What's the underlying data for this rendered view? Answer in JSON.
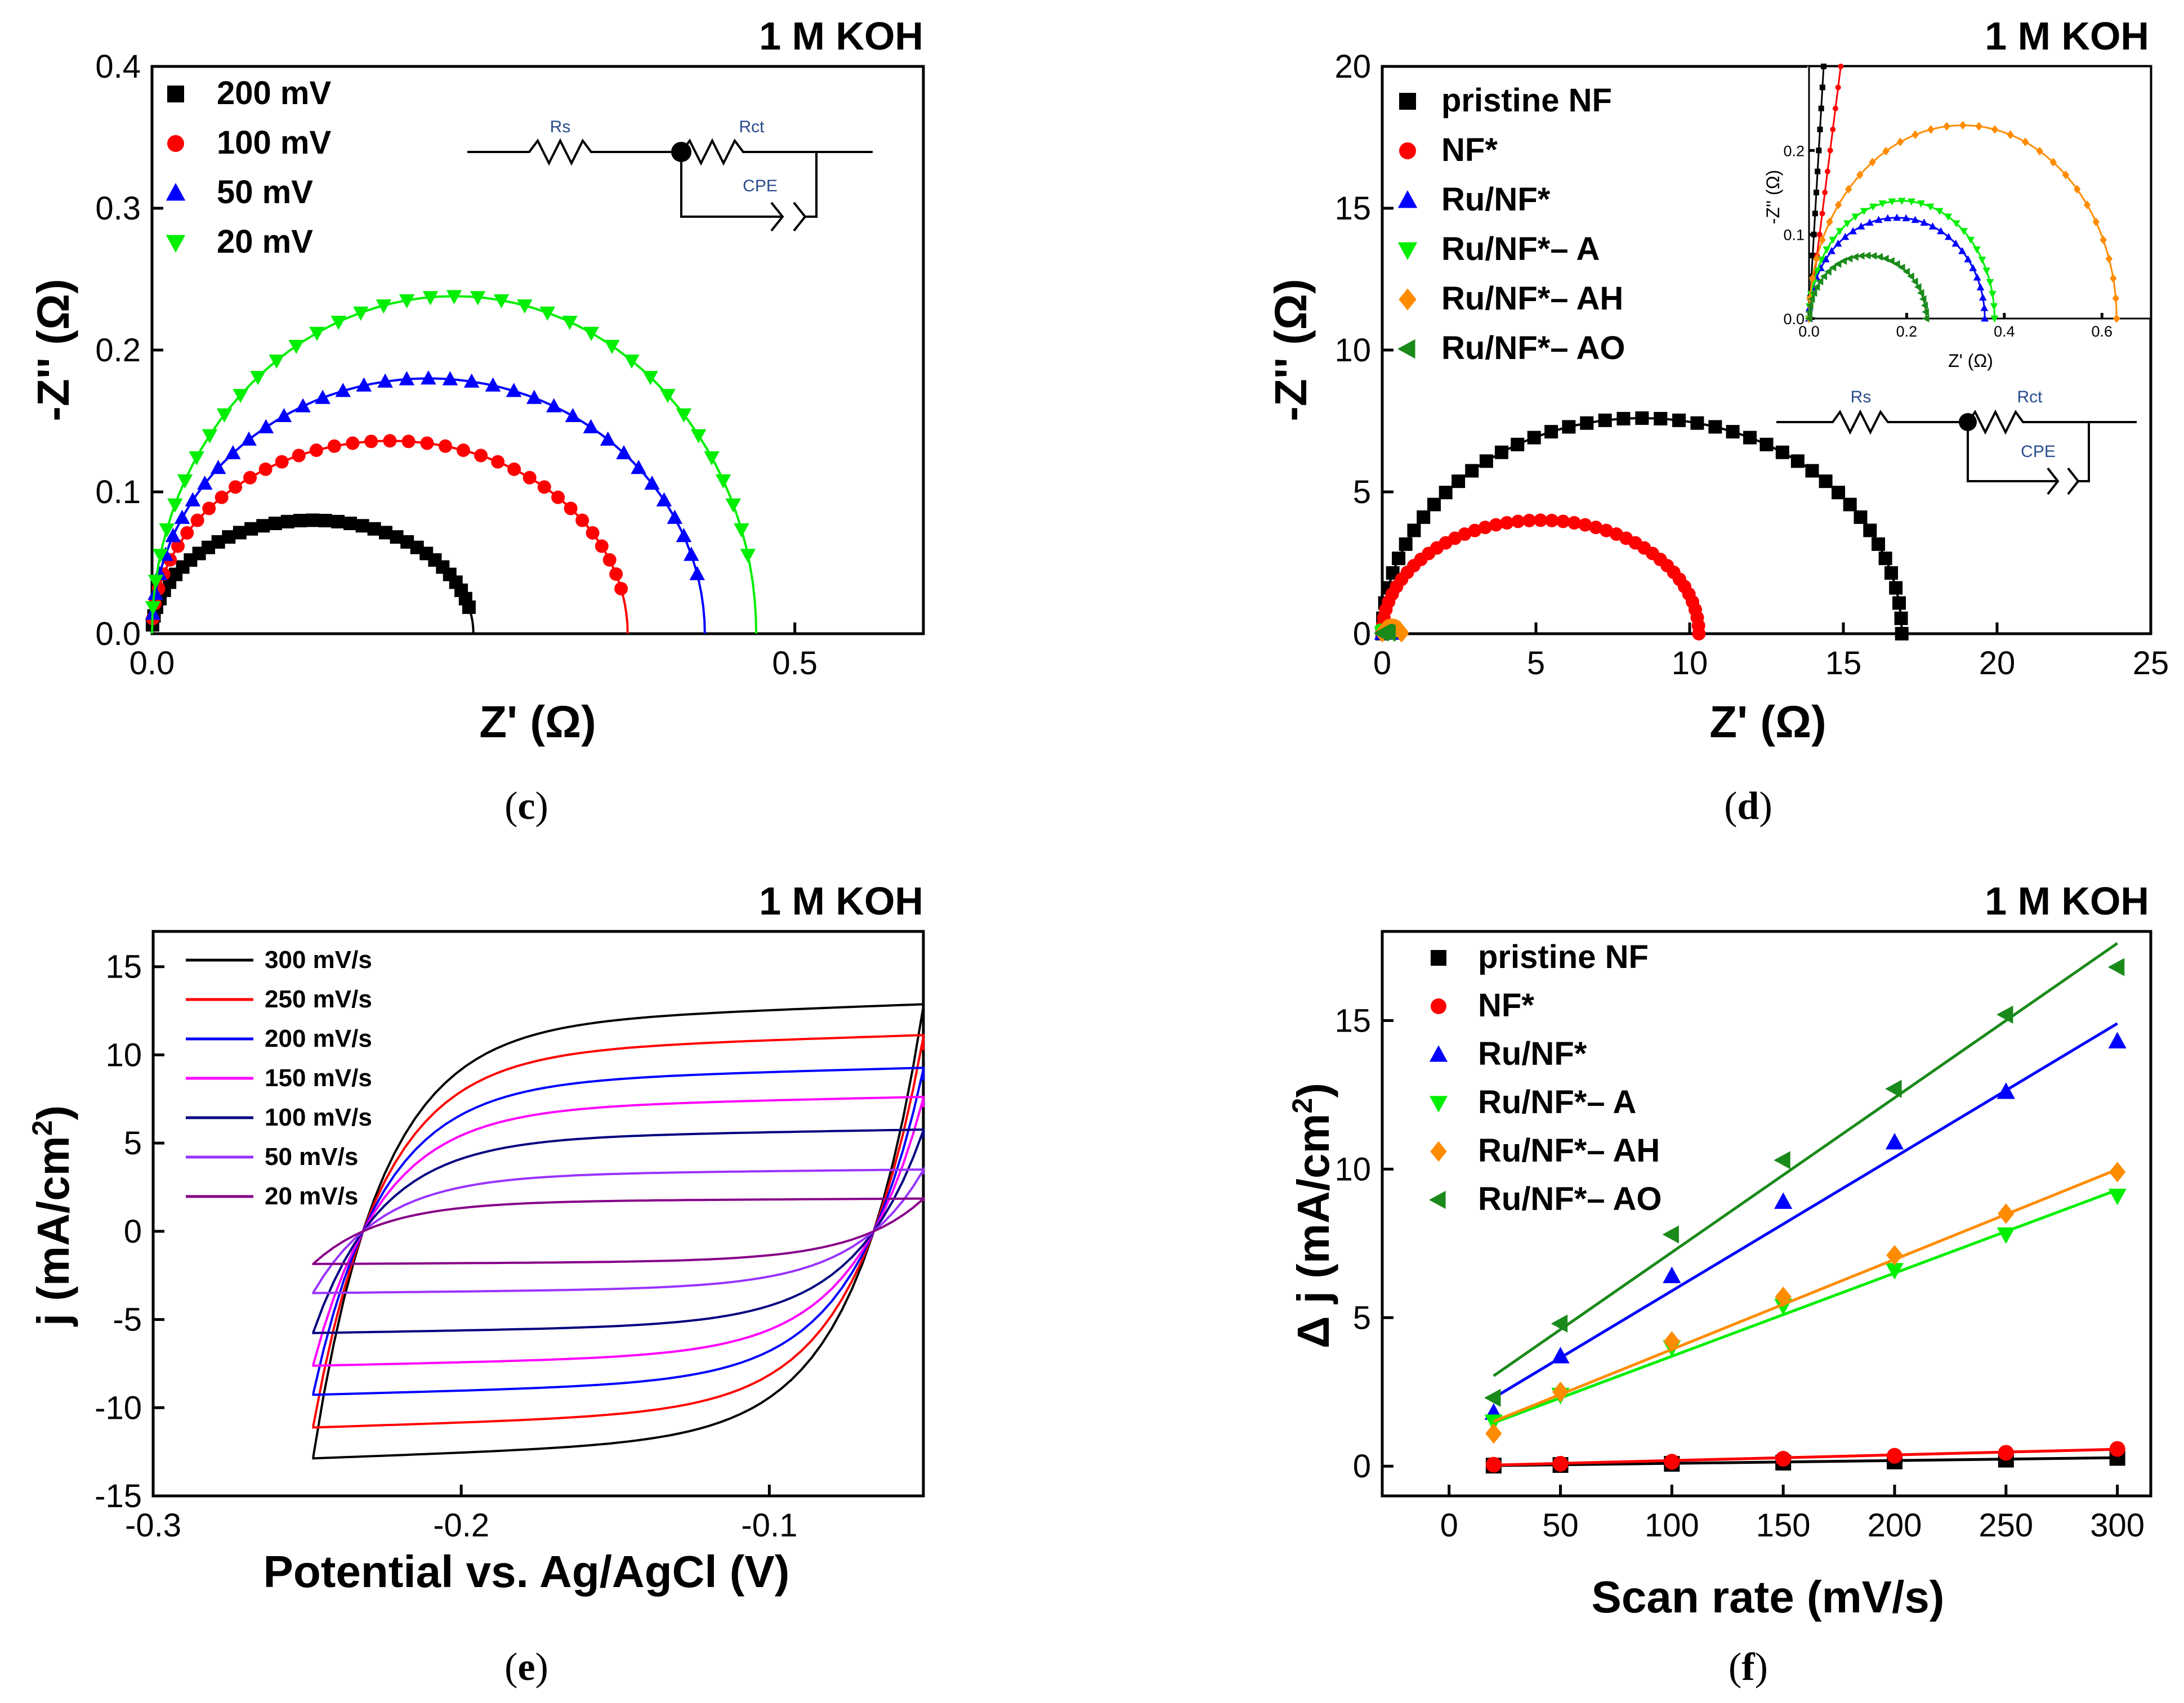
{
  "panels": {
    "c": {
      "title": "1 M KOH",
      "caption": {
        "open": "(",
        "letter": "c",
        "close": ")"
      },
      "xlabel": "Z' (Ω)",
      "ylabel": "-Z'' (Ω)",
      "xticks": [
        "0.0",
        "0.5"
      ],
      "yticks": [
        "0.0",
        "0.1",
        "0.2",
        "0.3",
        "0.4"
      ],
      "circuit": {
        "rs": "Rs",
        "rct": "Rct",
        "cpe": "CPE"
      }
    },
    "d": {
      "title": "1 M KOH",
      "caption": {
        "open": "(",
        "letter": "d",
        "close": ")"
      },
      "xlabel": "Z' (Ω)",
      "ylabel": "-Z'' (Ω)",
      "xticks": [
        "0",
        "5",
        "10",
        "15",
        "20",
        "25"
      ],
      "yticks": [
        "0",
        "5",
        "10",
        "15",
        "20"
      ],
      "inset": {
        "xlabel": "Z' (Ω)",
        "ylabel": "-Z'' (Ω)",
        "xticks": [
          "0.0",
          "0.2",
          "0.4",
          "0.6"
        ],
        "yticks": [
          "0.0",
          "0.1",
          "0.2"
        ]
      },
      "circuit": {
        "rs": "Rs",
        "rct": "Rct",
        "cpe": "CPE"
      }
    },
    "e": {
      "title": "1 M KOH",
      "caption": {
        "open": "(",
        "letter": "e",
        "close": ")"
      },
      "xlabel": "Potential vs. Ag/AgCl (V)",
      "ylabel": "j (mA/cm",
      "ylabel_sup": "2",
      "ylabel_end": ")",
      "xticks": [
        "-0.3",
        "-0.2",
        "-0.1"
      ],
      "yticks": [
        "-15",
        "-10",
        "-5",
        "0",
        "5",
        "10",
        "15"
      ]
    },
    "f": {
      "title": "1 M KOH",
      "caption": {
        "open": "(",
        "letter": "f",
        "close": ")"
      },
      "xlabel": "Scan rate (mV/s)",
      "ylabel": "Δ j (mA/cm",
      "ylabel_sup": "2",
      "ylabel_end": ")",
      "xticks": [
        "0",
        "50",
        "100",
        "150",
        "200",
        "250",
        "300"
      ],
      "yticks": [
        "0",
        "5",
        "10",
        "15"
      ]
    }
  },
  "chart_data": [
    {
      "id": "c",
      "type": "scatter",
      "title": "1 M KOH",
      "xlabel": "Z' (Ω)",
      "ylabel": "-Z'' (Ω)",
      "xlim": [
        0,
        0.6
      ],
      "ylim": [
        0,
        0.4
      ],
      "series": [
        {
          "name": "200 mV",
          "color": "#000000",
          "marker": "square",
          "semicircle": {
            "x0": 0.0,
            "x1": 0.25,
            "peak": 0.08
          }
        },
        {
          "name": "100 mV",
          "color": "#ff0000",
          "marker": "circle",
          "semicircle": {
            "x0": 0.0,
            "x1": 0.37,
            "peak": 0.136
          }
        },
        {
          "name": "50 mV",
          "color": "#0000ff",
          "marker": "triangle-up",
          "semicircle": {
            "x0": 0.0,
            "x1": 0.43,
            "peak": 0.18
          }
        },
        {
          "name": "20 mV",
          "color": "#00ee00",
          "marker": "triangle-down",
          "semicircle": {
            "x0": 0.0,
            "x1": 0.47,
            "peak": 0.238
          }
        }
      ]
    },
    {
      "id": "d",
      "type": "scatter",
      "title": "1 M KOH",
      "xlabel": "Z' (Ω)",
      "ylabel": "-Z'' (Ω)",
      "xlim": [
        0,
        25
      ],
      "ylim": [
        0,
        20
      ],
      "series": [
        {
          "name": "pristine NF",
          "color": "#000000",
          "marker": "square",
          "semicircle": {
            "x0": 0.0,
            "x1": 16.9,
            "peak": 7.6
          }
        },
        {
          "name": "NF*",
          "color": "#ff0000",
          "marker": "circle",
          "semicircle": {
            "x0": 0.0,
            "x1": 10.3,
            "peak": 4.0
          }
        },
        {
          "name": "Ru/NF*",
          "color": "#0000ff",
          "marker": "triangle-up",
          "semicircle": {
            "x0": 0.0,
            "x1": 0.36,
            "peak": 0.12
          }
        },
        {
          "name": "Ru/NF*– A",
          "color": "#00ee00",
          "marker": "triangle-down",
          "semicircle": {
            "x0": 0.0,
            "x1": 0.38,
            "peak": 0.14
          }
        },
        {
          "name": "Ru/NF*– AH",
          "color": "#ff8c00",
          "marker": "diamond",
          "semicircle": {
            "x0": 0.0,
            "x1": 0.63,
            "peak": 0.23
          }
        },
        {
          "name": "Ru/NF*– AO",
          "color": "#1a8a1a",
          "marker": "triangle-left",
          "semicircle": {
            "x0": 0.0,
            "x1": 0.24,
            "peak": 0.075
          }
        }
      ],
      "inset": {
        "xlim": [
          0,
          0.7
        ],
        "ylim": [
          0,
          0.3
        ]
      }
    },
    {
      "id": "e",
      "type": "line",
      "title": "1 M KOH",
      "xlabel": "Potential vs. Ag/AgCl (V)",
      "ylabel": "j (mA/cm2)",
      "xlim": [
        -0.3,
        -0.05
      ],
      "ylim": [
        -15,
        17
      ],
      "series": [
        {
          "name": "300 mV/s",
          "color": "#000000",
          "j": 12.5
        },
        {
          "name": "250 mV/s",
          "color": "#ff0000",
          "j": 10.8
        },
        {
          "name": "200 mV/s",
          "color": "#0000ff",
          "j": 9.0
        },
        {
          "name": "150 mV/s",
          "color": "#ff00ff",
          "j": 7.4
        },
        {
          "name": "100 mV/s",
          "color": "#000080",
          "j": 5.6
        },
        {
          "name": "50 mV/s",
          "color": "#9933ff",
          "j": 3.4
        },
        {
          "name": "20 mV/s",
          "color": "#880088",
          "j": 1.8
        }
      ]
    },
    {
      "id": "f",
      "type": "scatter",
      "title": "1 M KOH",
      "xlabel": "Scan rate (mV/s)",
      "ylabel": "Δ j (mA/cm2)",
      "xlim": [
        -30,
        315
      ],
      "ylim": [
        -1,
        18
      ],
      "x": [
        20,
        50,
        100,
        150,
        200,
        250,
        300
      ],
      "series": [
        {
          "name": "pristine NF",
          "color": "#000000",
          "marker": "square",
          "values": [
            0.02,
            0.04,
            0.08,
            0.12,
            0.16,
            0.22,
            0.28
          ],
          "fit": [
            0.0,
            0.00095
          ]
        },
        {
          "name": "NF*",
          "color": "#ff0000",
          "marker": "circle",
          "values": [
            0.05,
            0.08,
            0.15,
            0.25,
            0.35,
            0.45,
            0.58
          ],
          "fit": [
            0.0,
            0.0019
          ]
        },
        {
          "name": "Ru/NF*",
          "color": "#0000ff",
          "marker": "triangle-up",
          "values": [
            1.8,
            3.7,
            6.4,
            8.9,
            10.9,
            12.6,
            14.3
          ],
          "fit": [
            1.4,
            0.045
          ]
        },
        {
          "name": "Ru/NF*– A",
          "color": "#00ee00",
          "marker": "triangle-down",
          "values": [
            1.5,
            2.4,
            4.0,
            5.4,
            6.6,
            7.8,
            9.1
          ],
          "fit": [
            0.9,
            0.028
          ]
        },
        {
          "name": "Ru/NF*– AH",
          "color": "#ff8c00",
          "marker": "diamond",
          "values": [
            1.1,
            2.5,
            4.2,
            5.7,
            7.1,
            8.5,
            9.9
          ],
          "fit": [
            0.9,
            0.0303
          ]
        },
        {
          "name": "Ru/NF*– AO",
          "color": "#1a8a1a",
          "marker": "triangle-left",
          "values": [
            2.3,
            4.8,
            7.8,
            10.3,
            12.7,
            15.2,
            16.8
          ],
          "fit": [
            2.0,
            0.052
          ]
        }
      ]
    }
  ]
}
